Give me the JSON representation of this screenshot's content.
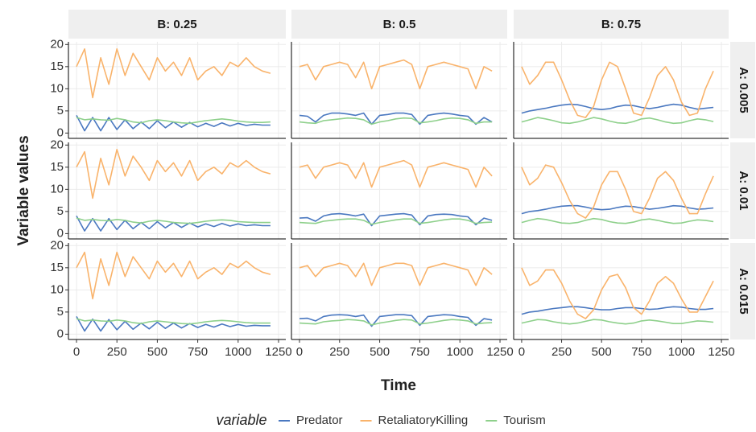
{
  "chart_data": {
    "type": "line",
    "x_label": "Time",
    "y_label": "Variable values",
    "legend_title": "variable",
    "legend_position": "bottom",
    "column_labels": [
      "B: 0.25",
      "B: 0.5",
      "B: 0.75"
    ],
    "row_labels": [
      "A: 0.005",
      "A: 0.01",
      "A: 0.015"
    ],
    "series": [
      {
        "name": "Predator",
        "color": "#4a78c0"
      },
      {
        "name": "RetaliatoryKilling",
        "color": "#f9b36b"
      },
      {
        "name": "Tourism",
        "color": "#8ed08b"
      }
    ],
    "xlim": [
      -50,
      1295
    ],
    "xticks": [
      0,
      250,
      500,
      750,
      1000,
      1250
    ],
    "ylim": [
      -1.2,
      20.6
    ],
    "yticks": [
      0,
      5,
      10,
      15,
      20
    ],
    "grid": true,
    "x": [
      0,
      50,
      100,
      150,
      200,
      250,
      300,
      350,
      400,
      450,
      500,
      550,
      600,
      650,
      700,
      750,
      800,
      850,
      900,
      950,
      1000,
      1050,
      1100,
      1150,
      1200
    ],
    "panels": [
      [
        {
          "values": [
            [
              4,
              0.5,
              3.5,
              0.5,
              3.5,
              0.8,
              3,
              1,
              2.5,
              1,
              2.8,
              1.2,
              2.5,
              1.3,
              2.4,
              1.4,
              2.2,
              1.5,
              2.3,
              1.6,
              2.2,
              1.7,
              2,
              1.8,
              1.8
            ],
            [
              15,
              19,
              8,
              17,
              11,
              19,
              13,
              18,
              15,
              12,
              17,
              14,
              16,
              13,
              17,
              12,
              14,
              15,
              13,
              16,
              15,
              17,
              15,
              14,
              13.5
            ],
            [
              3.5,
              3,
              3.2,
              3,
              2.9,
              3.3,
              3,
              2.5,
              2.3,
              2.8,
              3,
              2.8,
              2.5,
              2.3,
              2.2,
              2.5,
              2.8,
              3,
              3.2,
              3,
              2.7,
              2.5,
              2.4,
              2.4,
              2.5
            ]
          ]
        },
        {
          "values": [
            [
              4,
              3.8,
              2.5,
              4,
              4.5,
              4.5,
              4.3,
              4,
              4.5,
              2,
              4,
              4.2,
              4.5,
              4.5,
              4.2,
              2,
              4,
              4.3,
              4.5,
              4.3,
              4,
              3.8,
              2,
              3.5,
              2.5
            ],
            [
              15,
              15.5,
              12,
              15,
              15.5,
              16,
              15.5,
              12.5,
              16,
              10,
              15,
              15.5,
              16,
              16.5,
              15.5,
              10,
              15,
              15.5,
              16,
              15.5,
              15,
              14.5,
              10,
              15,
              14
            ],
            [
              2.5,
              2.3,
              2.2,
              2.8,
              3,
              3.2,
              3.4,
              3.3,
              3,
              2,
              2.5,
              2.8,
              3.2,
              3.4,
              3.3,
              2.3,
              2.5,
              2.8,
              3.2,
              3.4,
              3.3,
              3,
              2.2,
              2.5,
              2.5
            ]
          ]
        },
        {
          "values": [
            [
              4.5,
              5,
              5.3,
              5.6,
              6,
              6.3,
              6.5,
              6.4,
              6,
              5.5,
              5.3,
              5.5,
              6,
              6.3,
              6.2,
              5.8,
              5.5,
              5.8,
              6.2,
              6.5,
              6.3,
              5.8,
              5.4,
              5.6,
              5.8
            ],
            [
              15,
              11,
              13,
              16,
              16,
              12,
              7.5,
              4,
              3.5,
              6,
              12,
              16,
              15,
              10,
              4.5,
              4,
              8,
              13,
              15,
              12,
              7,
              4,
              4.5,
              10,
              14
            ],
            [
              2.5,
              3,
              3.5,
              3.2,
              2.8,
              2.3,
              2.2,
              2.5,
              3,
              3.5,
              3.2,
              2.7,
              2.3,
              2.2,
              2.6,
              3.2,
              3.4,
              3,
              2.5,
              2.2,
              2.3,
              2.8,
              3.2,
              3,
              2.6
            ]
          ]
        }
      ],
      [
        {
          "values": [
            [
              4,
              0.6,
              3.4,
              0.6,
              3.4,
              0.9,
              3,
              1.1,
              2.5,
              1.1,
              2.7,
              1.3,
              2.5,
              1.4,
              2.4,
              1.5,
              2.2,
              1.6,
              2.3,
              1.7,
              2.2,
              1.8,
              2,
              1.8,
              1.8
            ],
            [
              15,
              18.5,
              8,
              17,
              11,
              19,
              13,
              17.5,
              15,
              12,
              16.5,
              14,
              16,
              13,
              16.5,
              12,
              14,
              15,
              13.5,
              16,
              15,
              16.5,
              15,
              14,
              13.5
            ],
            [
              3.5,
              3,
              3.2,
              3,
              2.9,
              3.2,
              3,
              2.6,
              2.4,
              2.8,
              3,
              2.8,
              2.5,
              2.4,
              2.3,
              2.5,
              2.8,
              3,
              3.1,
              3,
              2.7,
              2.6,
              2.5,
              2.5,
              2.5
            ]
          ]
        },
        {
          "values": [
            [
              3.5,
              3.6,
              2.8,
              4,
              4.4,
              4.5,
              4.3,
              4,
              4.4,
              1.8,
              4,
              4.2,
              4.4,
              4.5,
              4.2,
              2,
              4,
              4.3,
              4.4,
              4.3,
              4,
              3.8,
              2,
              3.5,
              3
            ],
            [
              15,
              15.5,
              12.5,
              15,
              15.5,
              16,
              15.5,
              12.5,
              16,
              10.5,
              15,
              15.5,
              16,
              16.5,
              15.5,
              10.5,
              15,
              15.5,
              16,
              15.5,
              15,
              14.5,
              10.5,
              15,
              13
            ],
            [
              2.5,
              2.4,
              2.3,
              2.8,
              3,
              3.2,
              3.3,
              3.3,
              3,
              2.1,
              2.5,
              2.8,
              3.1,
              3.3,
              3.3,
              2.3,
              2.5,
              2.8,
              3.1,
              3.3,
              3.3,
              3,
              2.3,
              2.5,
              2.6
            ]
          ]
        },
        {
          "values": [
            [
              4.5,
              5,
              5.2,
              5.5,
              5.9,
              6.2,
              6.3,
              6.3,
              6,
              5.6,
              5.4,
              5.5,
              5.9,
              6.2,
              6.1,
              5.8,
              5.5,
              5.7,
              6,
              6.3,
              6.2,
              5.8,
              5.5,
              5.6,
              5.8
            ],
            [
              15,
              11,
              12.5,
              15.5,
              15,
              11.5,
              7.5,
              4.5,
              3.5,
              6,
              11,
              14,
              14,
              10,
              5,
              4.5,
              8,
              12.5,
              14,
              12,
              8,
              4.5,
              4.5,
              9,
              13
            ],
            [
              2.5,
              3,
              3.4,
              3.2,
              2.8,
              2.4,
              2.3,
              2.5,
              3,
              3.4,
              3.2,
              2.7,
              2.4,
              2.3,
              2.6,
              3.1,
              3.3,
              3,
              2.6,
              2.3,
              2.4,
              2.8,
              3.1,
              3,
              2.7
            ]
          ]
        }
      ],
      [
        {
          "values": [
            [
              4,
              0.7,
              3.4,
              0.7,
              3.3,
              1,
              2.9,
              1.1,
              2.5,
              1.2,
              2.7,
              1.3,
              2.5,
              1.4,
              2.4,
              1.5,
              2.2,
              1.6,
              2.3,
              1.7,
              2.2,
              1.8,
              2,
              1.9,
              1.9
            ],
            [
              15,
              18.5,
              8,
              17,
              11,
              18.5,
              13,
              17.5,
              15,
              12.5,
              16.5,
              14,
              16,
              13,
              16.5,
              12.5,
              14,
              15,
              13.5,
              16,
              15,
              16.5,
              15,
              14,
              13.5
            ],
            [
              3.5,
              3,
              3.2,
              3,
              2.9,
              3.2,
              3,
              2.6,
              2.4,
              2.8,
              3,
              2.8,
              2.6,
              2.4,
              2.3,
              2.5,
              2.8,
              3,
              3.1,
              3,
              2.8,
              2.6,
              2.5,
              2.5,
              2.5
            ]
          ]
        },
        {
          "values": [
            [
              3.5,
              3.6,
              3,
              4,
              4.3,
              4.4,
              4.3,
              4,
              4.3,
              1.8,
              4,
              4.2,
              4.4,
              4.4,
              4.2,
              2,
              4,
              4.2,
              4.4,
              4.3,
              4,
              3.8,
              2,
              3.5,
              3.2
            ],
            [
              15,
              15.5,
              13,
              15,
              15.5,
              16,
              15.5,
              13,
              16,
              11,
              15,
              15.5,
              16,
              16,
              15.5,
              11,
              15,
              15.5,
              16,
              15.5,
              15,
              14.5,
              11,
              15,
              13.5
            ],
            [
              2.5,
              2.4,
              2.3,
              2.8,
              3,
              3.1,
              3.3,
              3.2,
              3,
              2.1,
              2.5,
              2.8,
              3.1,
              3.3,
              3.2,
              2.3,
              2.5,
              2.8,
              3.1,
              3.3,
              3.2,
              3,
              2.3,
              2.5,
              2.6
            ]
          ]
        },
        {
          "values": [
            [
              4.5,
              5,
              5.2,
              5.5,
              5.8,
              6,
              6.2,
              6.2,
              6,
              5.7,
              5.5,
              5.5,
              5.8,
              6,
              6,
              5.8,
              5.6,
              5.7,
              6,
              6.2,
              6.1,
              5.8,
              5.6,
              5.6,
              5.8
            ],
            [
              15,
              11,
              12,
              14.5,
              14.5,
              11.5,
              7.5,
              4.5,
              3.5,
              5.5,
              10,
              13,
              13.5,
              10.5,
              6,
              4.5,
              7.5,
              11.5,
              13,
              11.5,
              8,
              5,
              5,
              8.5,
              12
            ],
            [
              2.5,
              2.9,
              3.3,
              3.2,
              2.8,
              2.5,
              2.3,
              2.5,
              2.9,
              3.3,
              3.2,
              2.8,
              2.5,
              2.3,
              2.5,
              3,
              3.2,
              3,
              2.7,
              2.4,
              2.4,
              2.7,
              3,
              2.9,
              2.7
            ]
          ]
        }
      ]
    ]
  }
}
